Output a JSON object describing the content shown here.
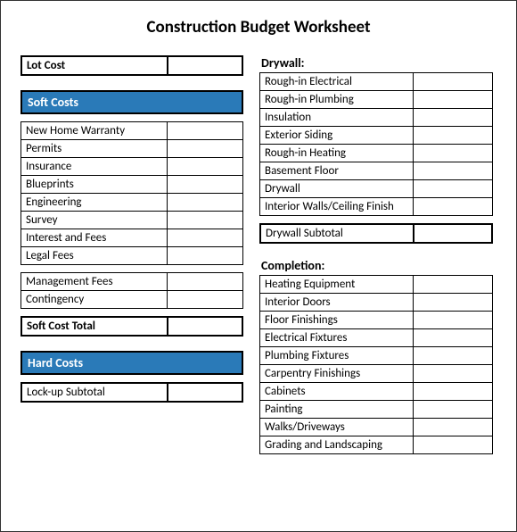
{
  "title": "Construction Budget Worksheet",
  "title_fontsize": 19,
  "colors": {
    "section_bg": "#2a7ab8",
    "section_text": "#ffffff",
    "border": "#000000",
    "text": "#000000",
    "background": "#ffffff"
  },
  "typography": {
    "title_weight": "bold",
    "body_fontsize": 13,
    "header_fontsize": 14
  },
  "left": {
    "lot_cost": {
      "label": "Lot Cost",
      "value": ""
    },
    "soft_costs_header": "Soft Costs",
    "soft_costs_items": [
      {
        "label": "New Home Warranty",
        "value": ""
      },
      {
        "label": "Permits",
        "value": ""
      },
      {
        "label": "Insurance",
        "value": ""
      },
      {
        "label": "Blueprints",
        "value": ""
      },
      {
        "label": "Engineering",
        "value": ""
      },
      {
        "label": "Survey",
        "value": ""
      },
      {
        "label": "Interest and Fees",
        "value": ""
      },
      {
        "label": "Legal Fees",
        "value": ""
      }
    ],
    "soft_costs_extra": [
      {
        "label": "Management Fees",
        "value": ""
      },
      {
        "label": "Contingency",
        "value": ""
      }
    ],
    "soft_cost_total": {
      "label": "Soft Cost Total",
      "value": ""
    },
    "hard_costs_header": "Hard Costs",
    "lockup_subtotal": {
      "label": "Lock-up Subtotal",
      "value": ""
    }
  },
  "right": {
    "drywall_header": "Drywall:",
    "drywall_items": [
      {
        "label": "Rough-in Electrical",
        "value": ""
      },
      {
        "label": "Rough-in Plumbing",
        "value": ""
      },
      {
        "label": "Insulation",
        "value": ""
      },
      {
        "label": "Exterior Siding",
        "value": ""
      },
      {
        "label": "Rough-in Heating",
        "value": ""
      },
      {
        "label": "Basement Floor",
        "value": ""
      },
      {
        "label": "Drywall",
        "value": ""
      },
      {
        "label": "Interior Walls/Ceiling Finish",
        "value": ""
      }
    ],
    "drywall_subtotal": {
      "label": "Drywall Subtotal",
      "value": ""
    },
    "completion_header": "Completion:",
    "completion_items": [
      {
        "label": "Heating Equipment",
        "value": ""
      },
      {
        "label": "Interior Doors",
        "value": ""
      },
      {
        "label": "Floor Finishings",
        "value": ""
      },
      {
        "label": "Electrical Fixtures",
        "value": ""
      },
      {
        "label": "Plumbing Fixtures",
        "value": ""
      },
      {
        "label": "Carpentry Finishings",
        "value": ""
      },
      {
        "label": "Cabinets",
        "value": ""
      },
      {
        "label": "Painting",
        "value": ""
      },
      {
        "label": "Walks/Driveways",
        "value": ""
      },
      {
        "label": "Grading and Landscaping",
        "value": ""
      }
    ]
  }
}
